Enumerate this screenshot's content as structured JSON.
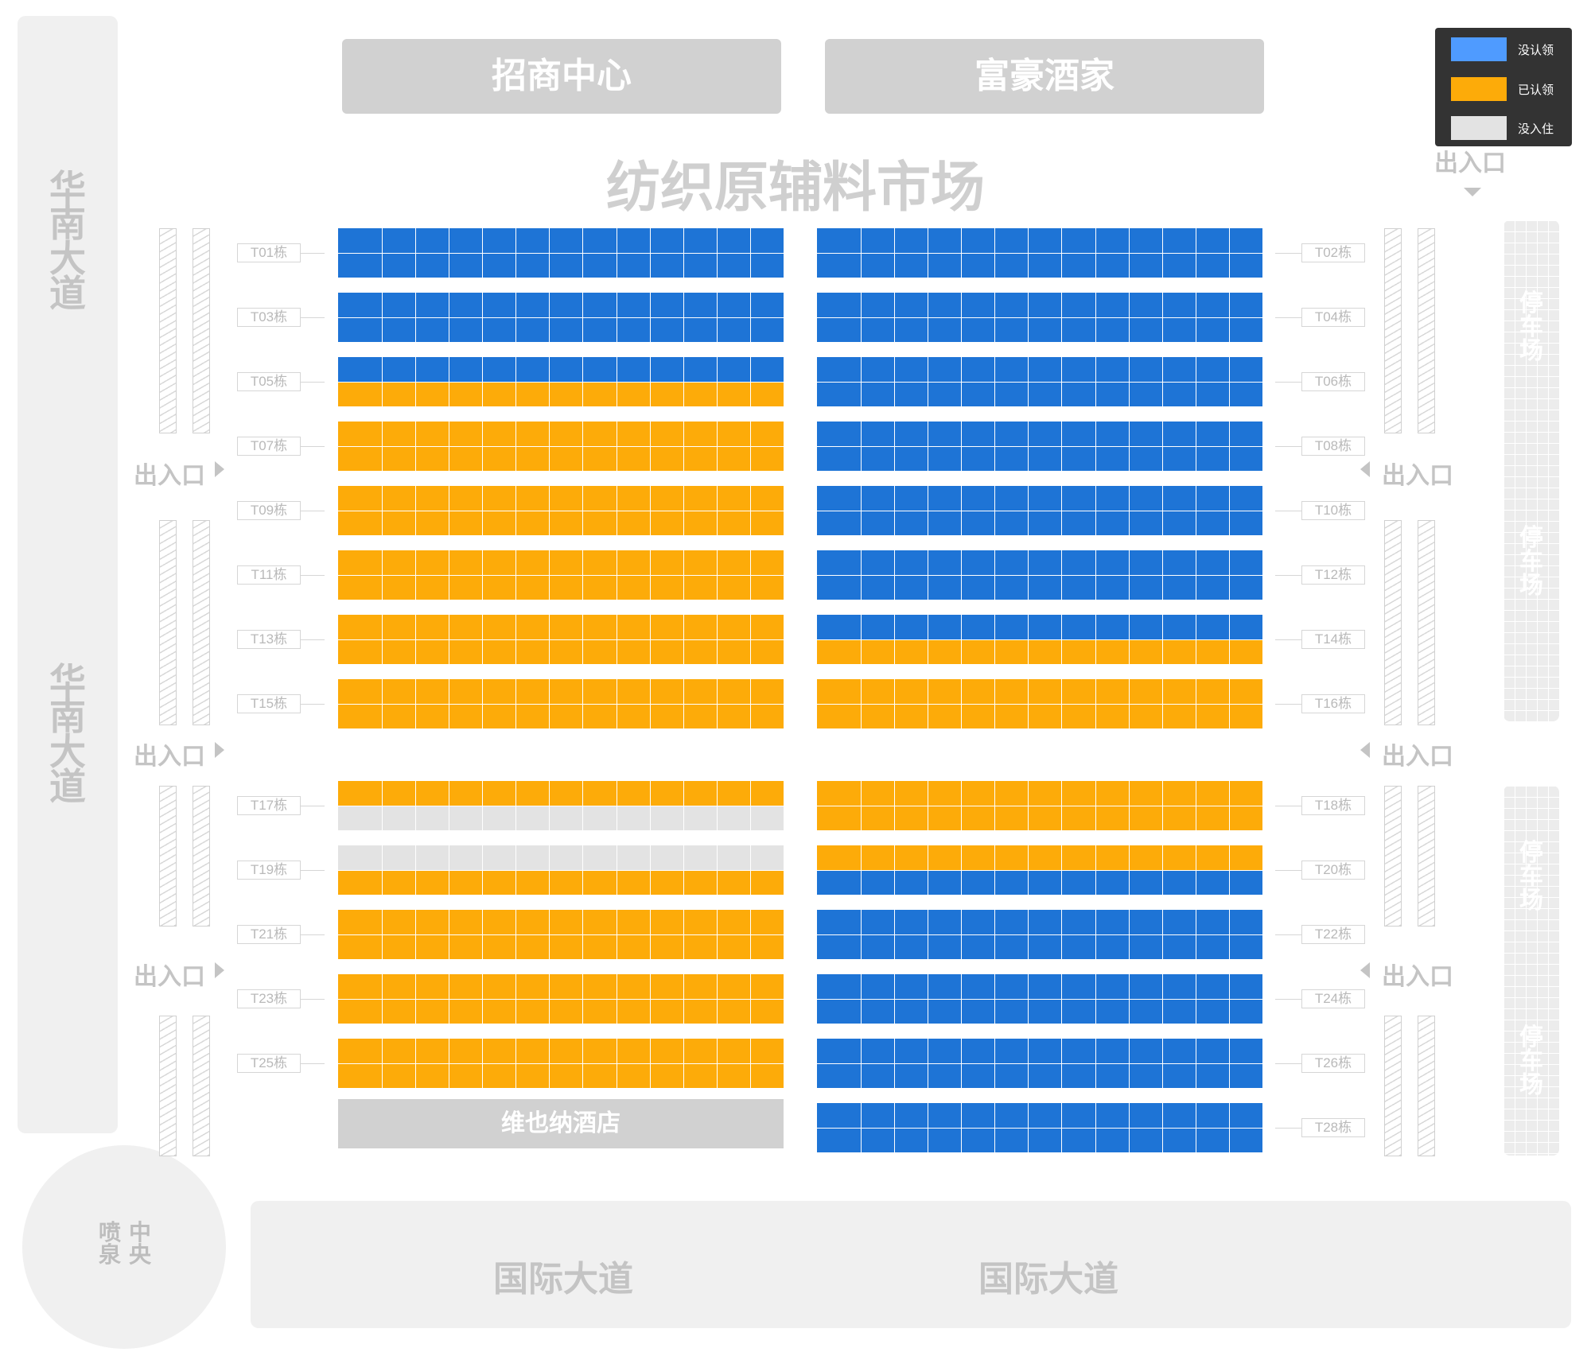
{
  "roads": {
    "left_road_label": "华南大道",
    "bottom_road_label": "国际大道"
  },
  "fountain": {
    "label": "中央喷泉"
  },
  "top_buildings": [
    "招商中心",
    "富豪酒家"
  ],
  "market_title": "纺织原辅料市场",
  "entrance_label": "出入口",
  "parking_label": "停车场",
  "hotel_label": "维也纳酒店",
  "legend": {
    "items": [
      {
        "label": "没认领",
        "color": "#4f9bff"
      },
      {
        "label": "已认领",
        "color": "#fdab09"
      },
      {
        "label": "没入住",
        "color": "#e3e3e3"
      }
    ]
  },
  "status_colors": {
    "blue": "#1e74d6",
    "orange": "#fdab09",
    "gray": "#e3e3e3"
  },
  "buildings": [
    {
      "id": "T01栋",
      "side": "left",
      "row": 0,
      "top": "blue",
      "bottom": "blue"
    },
    {
      "id": "T02栋",
      "side": "right",
      "row": 0,
      "top": "blue",
      "bottom": "blue"
    },
    {
      "id": "T03栋",
      "side": "left",
      "row": 1,
      "top": "blue",
      "bottom": "blue"
    },
    {
      "id": "T04栋",
      "side": "right",
      "row": 1,
      "top": "blue",
      "bottom": "blue"
    },
    {
      "id": "T05栋",
      "side": "left",
      "row": 2,
      "top": "blue",
      "bottom": "orange"
    },
    {
      "id": "T06栋",
      "side": "right",
      "row": 2,
      "top": "blue",
      "bottom": "blue"
    },
    {
      "id": "T07栋",
      "side": "left",
      "row": 3,
      "top": "orange",
      "bottom": "orange"
    },
    {
      "id": "T08栋",
      "side": "right",
      "row": 3,
      "top": "blue",
      "bottom": "blue"
    },
    {
      "id": "T09栋",
      "side": "left",
      "row": 4,
      "top": "orange",
      "bottom": "orange"
    },
    {
      "id": "T10栋",
      "side": "right",
      "row": 4,
      "top": "blue",
      "bottom": "blue"
    },
    {
      "id": "T11栋",
      "side": "left",
      "row": 5,
      "top": "orange",
      "bottom": "orange"
    },
    {
      "id": "T12栋",
      "side": "right",
      "row": 5,
      "top": "blue",
      "bottom": "blue"
    },
    {
      "id": "T13栋",
      "side": "left",
      "row": 6,
      "top": "orange",
      "bottom": "orange"
    },
    {
      "id": "T14栋",
      "side": "right",
      "row": 6,
      "top": "blue",
      "bottom": "orange"
    },
    {
      "id": "T15栋",
      "side": "left",
      "row": 7,
      "top": "orange",
      "bottom": "orange"
    },
    {
      "id": "T16栋",
      "side": "right",
      "row": 7,
      "top": "orange",
      "bottom": "orange"
    },
    {
      "id": "T17栋",
      "side": "left",
      "row": 8,
      "top": "orange",
      "bottom": "gray"
    },
    {
      "id": "T18栋",
      "side": "right",
      "row": 8,
      "top": "orange",
      "bottom": "orange"
    },
    {
      "id": "T19栋",
      "side": "left",
      "row": 9,
      "top": "gray",
      "bottom": "orange"
    },
    {
      "id": "T20栋",
      "side": "right",
      "row": 9,
      "top": "orange",
      "bottom": "blue"
    },
    {
      "id": "T21栋",
      "side": "left",
      "row": 10,
      "top": "orange",
      "bottom": "orange"
    },
    {
      "id": "T22栋",
      "side": "right",
      "row": 10,
      "top": "blue",
      "bottom": "blue"
    },
    {
      "id": "T23栋",
      "side": "left",
      "row": 11,
      "top": "orange",
      "bottom": "orange"
    },
    {
      "id": "T24栋",
      "side": "right",
      "row": 11,
      "top": "blue",
      "bottom": "blue"
    },
    {
      "id": "T25栋",
      "side": "left",
      "row": 12,
      "top": "orange",
      "bottom": "orange"
    },
    {
      "id": "T26栋",
      "side": "right",
      "row": 12,
      "top": "blue",
      "bottom": "blue"
    },
    {
      "id": "T28栋",
      "side": "right",
      "row": 13,
      "top": "blue",
      "bottom": "blue"
    }
  ]
}
